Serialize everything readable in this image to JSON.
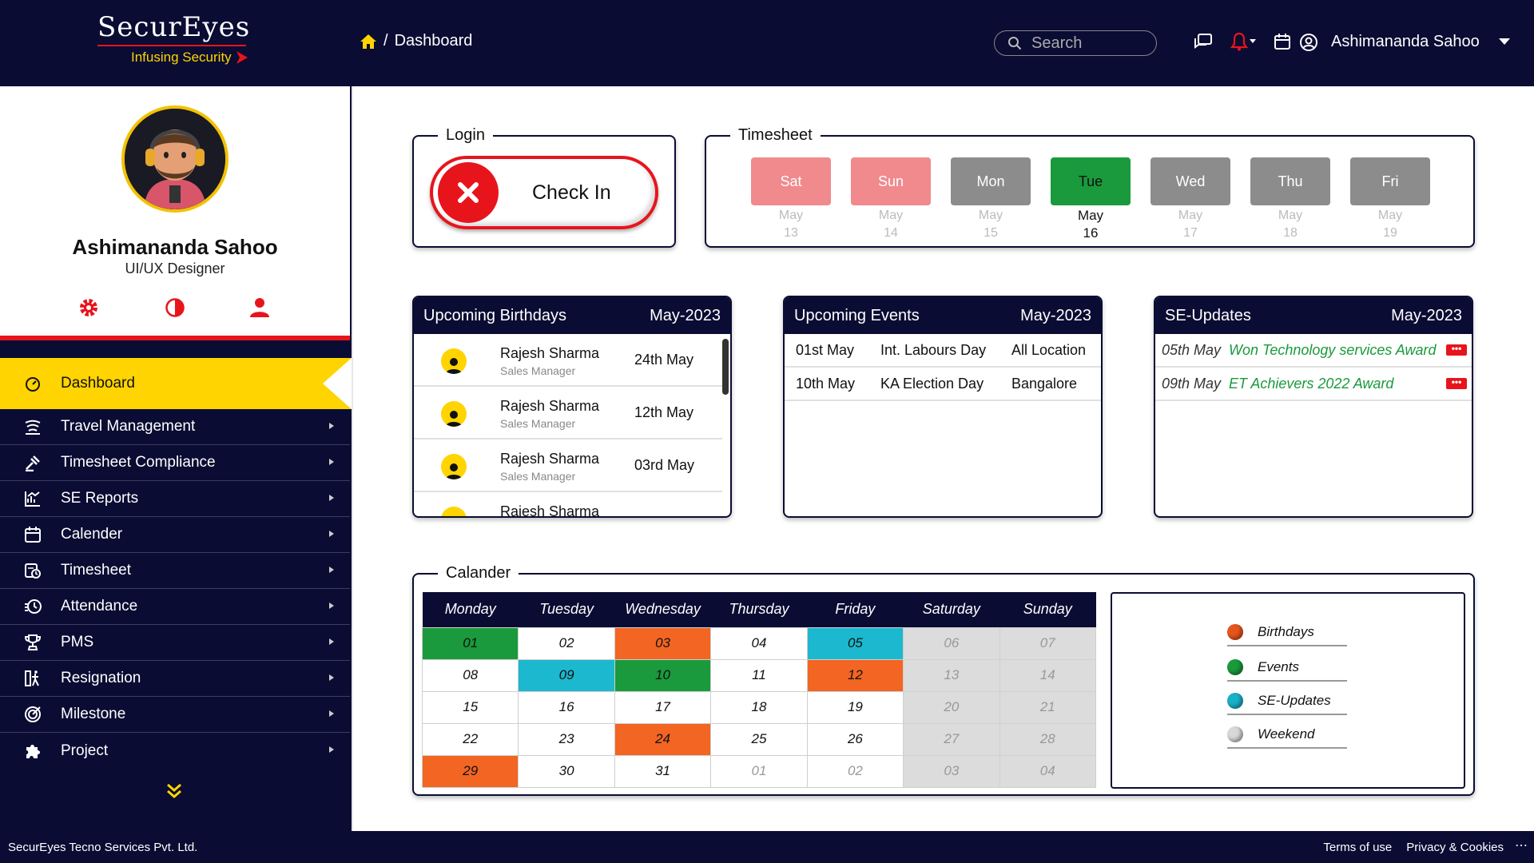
{
  "brand": {
    "name": "SecurEyes",
    "tagline": "Infusing Security"
  },
  "breadcrumb": {
    "separator": "/",
    "page": "Dashboard"
  },
  "search": {
    "placeholder": "Search"
  },
  "user": {
    "name": "Ashimananda Sahoo",
    "role": "UI/UX Designer"
  },
  "sidebar": {
    "active": "Dashboard",
    "items": [
      {
        "label": "Travel Management",
        "icon": "travel-icon"
      },
      {
        "label": "Timesheet Compliance",
        "icon": "compliance-icon"
      },
      {
        "label": "SE Reports",
        "icon": "reports-icon"
      },
      {
        "label": "Calender",
        "icon": "calendar-icon"
      },
      {
        "label": "Timesheet",
        "icon": "timesheet-icon"
      },
      {
        "label": "Attendance",
        "icon": "attendance-icon"
      },
      {
        "label": "PMS",
        "icon": "trophy-icon"
      },
      {
        "label": "Resignation",
        "icon": "resignation-icon"
      },
      {
        "label": "Milestone",
        "icon": "milestone-icon"
      },
      {
        "label": "Project",
        "icon": "puzzle-icon"
      }
    ]
  },
  "login": {
    "legend": "Login",
    "button": "Check In"
  },
  "timesheet": {
    "legend": "Timesheet",
    "days": [
      {
        "day": "Sat",
        "month": "May",
        "date": "13",
        "color": "#f08a8d"
      },
      {
        "day": "Sun",
        "month": "May",
        "date": "14",
        "color": "#f08a8d"
      },
      {
        "day": "Mon",
        "month": "May",
        "date": "15",
        "color": "#8c8c8c"
      },
      {
        "day": "Tue",
        "month": "May",
        "date": "16",
        "color": "#1a9a3c"
      },
      {
        "day": "Wed",
        "month": "May",
        "date": "17",
        "color": "#8c8c8c"
      },
      {
        "day": "Thu",
        "month": "May",
        "date": "18",
        "color": "#8c8c8c"
      },
      {
        "day": "Fri",
        "month": "May",
        "date": "19",
        "color": "#8c8c8c"
      }
    ]
  },
  "birthdays": {
    "title": "Upcoming Birthdays",
    "period": "May-2023",
    "rows": [
      {
        "name": "Rajesh Sharma",
        "role": "Sales Manager",
        "date": "24th May"
      },
      {
        "name": "Rajesh Sharma",
        "role": "Sales Manager",
        "date": "12th May"
      },
      {
        "name": "Rajesh Sharma",
        "role": "Sales Manager",
        "date": "03rd May"
      },
      {
        "name": "Rajesh Sharma",
        "role": "",
        "date": ""
      }
    ]
  },
  "events": {
    "title": "Upcoming Events",
    "period": "May-2023",
    "rows": [
      {
        "date": "01st May",
        "event": "Int. Labours Day",
        "location": "All Location"
      },
      {
        "date": "10th May",
        "event": "KA Election Day",
        "location": "Bangalore"
      }
    ]
  },
  "updates": {
    "title": "SE-Updates",
    "period": "May-2023",
    "rows": [
      {
        "date": "05th May",
        "text": "Won Technology services Award"
      },
      {
        "date": "09th May",
        "text": "ET Achievers 2022 Award"
      }
    ]
  },
  "calendar": {
    "legend": "Calander",
    "headers": [
      "Monday",
      "Tuesday",
      "Wednesday",
      "Thursday",
      "Friday",
      "Saturday",
      "Sunday"
    ],
    "weeks": [
      [
        [
          "01",
          "event"
        ],
        [
          "02",
          ""
        ],
        [
          "03",
          "birthday"
        ],
        [
          "04",
          ""
        ],
        [
          "05",
          "update"
        ],
        [
          "06",
          "weekend"
        ],
        [
          "07",
          "weekend"
        ]
      ],
      [
        [
          "08",
          ""
        ],
        [
          "09",
          "update"
        ],
        [
          "10",
          "event"
        ],
        [
          "11",
          ""
        ],
        [
          "12",
          "birthday"
        ],
        [
          "13",
          "weekend"
        ],
        [
          "14",
          "weekend"
        ]
      ],
      [
        [
          "15",
          ""
        ],
        [
          "16",
          ""
        ],
        [
          "17",
          ""
        ],
        [
          "18",
          ""
        ],
        [
          "19",
          ""
        ],
        [
          "20",
          "weekend"
        ],
        [
          "21",
          "weekend"
        ]
      ],
      [
        [
          "22",
          ""
        ],
        [
          "23",
          ""
        ],
        [
          "24",
          "birthday"
        ],
        [
          "25",
          ""
        ],
        [
          "26",
          ""
        ],
        [
          "27",
          "weekend"
        ],
        [
          "28",
          "weekend"
        ]
      ],
      [
        [
          "29",
          "birthday"
        ],
        [
          "30",
          ""
        ],
        [
          "31",
          ""
        ],
        [
          "01",
          "other"
        ],
        [
          "02",
          "other"
        ],
        [
          "03",
          "weekend"
        ],
        [
          "04",
          "weekend"
        ]
      ]
    ],
    "colors": {
      "event": "#1a9a3c",
      "birthday": "#f26522",
      "update": "#1cb8cf",
      "weekend": "#dcdcdc"
    },
    "key": [
      {
        "label": "Birthdays",
        "color": "#e8541c"
      },
      {
        "label": "Events",
        "color": "#1a9a3c"
      },
      {
        "label": "SE-Updates",
        "color": "#1ab0c8"
      },
      {
        "label": "Weekend",
        "color": "#d8d8d8"
      }
    ]
  },
  "footer": {
    "company": "SecurEyes Tecno Services Pvt. Ltd.",
    "terms": "Terms of use",
    "privacy": "Privacy & Cookies"
  }
}
